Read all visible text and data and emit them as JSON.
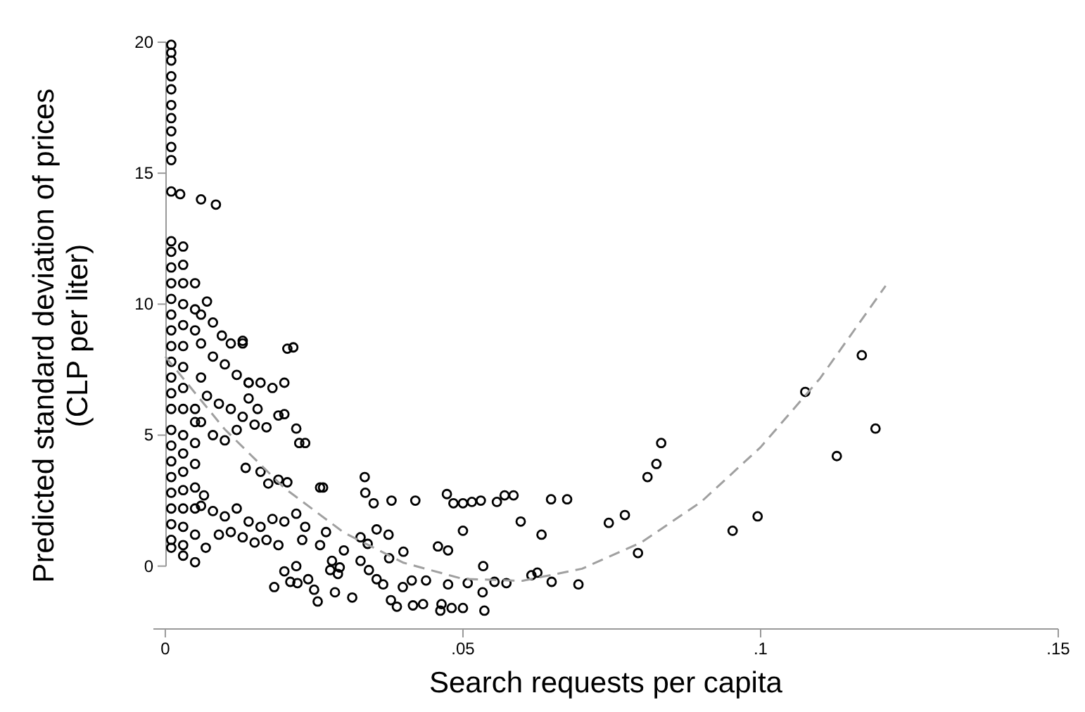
{
  "chart_data": {
    "type": "scatter",
    "xlabel": "Search requests per capita",
    "ylabel": "Predicted standard deviation of prices\n(CLP per liter)",
    "xlim": [
      -0.002,
      0.15
    ],
    "ylim": [
      -2.4,
      20
    ],
    "xticks": [
      {
        "value": 0,
        "label": "0"
      },
      {
        "value": 0.05,
        "label": ".05"
      },
      {
        "value": 0.1,
        "label": ".1"
      },
      {
        "value": 0.15,
        "label": ".15"
      }
    ],
    "yticks": [
      0,
      5,
      10,
      15,
      20
    ],
    "marker": "circle",
    "series": [
      {
        "color": "#000000",
        "x": [
          0.001,
          0.001,
          0.001,
          0.001,
          0.001,
          0.001,
          0.001,
          0.001,
          0.001,
          0.001,
          0.001,
          0.001,
          0.001,
          0.001,
          0.001,
          0.001,
          0.001,
          0.001,
          0.001,
          0.001,
          0.001,
          0.001,
          0.001,
          0.001,
          0.001,
          0.001,
          0.001,
          0.001,
          0.001,
          0.001,
          0.001,
          0.001,
          0.003,
          0.003,
          0.003,
          0.003,
          0.003,
          0.003,
          0.003,
          0.003,
          0.003,
          0.003,
          0.003,
          0.003,
          0.003,
          0.003,
          0.003,
          0.003,
          0.003,
          0.0025,
          0.006,
          0.0085,
          0.005,
          0.005,
          0.005,
          0.005,
          0.005,
          0.005,
          0.005,
          0.005,
          0.007,
          0.006,
          0.008,
          0.0095,
          0.011,
          0.013,
          0.006,
          0.008,
          0.01,
          0.012,
          0.014,
          0.016,
          0.018,
          0.006,
          0.007,
          0.009,
          0.011,
          0.013,
          0.015,
          0.006,
          0.008,
          0.01,
          0.012,
          0.014,
          0.005,
          0.0205,
          0.0215,
          0.02,
          0.014,
          0.013,
          0.022,
          0.017,
          0.0225,
          0.0235,
          0.019,
          0.02,
          0.0155,
          0.005,
          0.0135,
          0.016,
          0.0173,
          0.019,
          0.0205,
          0.022,
          0.0065,
          0.005,
          0.0068,
          0.006,
          0.008,
          0.01,
          0.012,
          0.014,
          0.016,
          0.018,
          0.02,
          0.009,
          0.011,
          0.013,
          0.015,
          0.017,
          0.019,
          0.02,
          0.022,
          0.021,
          0.024,
          0.025,
          0.023,
          0.026,
          0.028,
          0.029,
          0.027,
          0.026,
          0.0265,
          0.0335,
          0.0336,
          0.035,
          0.038,
          0.042,
          0.0473,
          0.0484,
          0.05,
          0.0515,
          0.053,
          0.0557,
          0.057,
          0.0585,
          0.0648,
          0.0675,
          0.0597,
          0.0632,
          0.05,
          0.0745,
          0.0772,
          0.081,
          0.0825,
          0.0833,
          0.0794,
          0.0235,
          0.0328,
          0.0355,
          0.0375,
          0.04,
          0.0458,
          0.0475,
          0.03,
          0.034,
          0.0376,
          0.0328,
          0.0277,
          0.0293,
          0.0342,
          0.0355,
          0.0366,
          0.0399,
          0.0414,
          0.0438,
          0.0475,
          0.0508,
          0.0534,
          0.0533,
          0.0553,
          0.0573,
          0.0615,
          0.0625,
          0.0649,
          0.0694,
          0.0256,
          0.0285,
          0.0314,
          0.0379,
          0.0389,
          0.0416,
          0.0433,
          0.0464,
          0.0462,
          0.0481,
          0.05,
          0.0536,
          0.0183,
          0.0222,
          0.117,
          0.1193,
          0.1128,
          0.1075,
          0.0953,
          0.0995
        ],
        "values": [
          19.9,
          19.6,
          19.3,
          18.7,
          18.2,
          17.6,
          17.1,
          16.6,
          16.0,
          15.5,
          14.3,
          12.4,
          12.0,
          11.4,
          10.8,
          10.2,
          9.6,
          9.0,
          8.4,
          7.8,
          7.2,
          6.6,
          6.0,
          5.2,
          4.6,
          4.0,
          3.4,
          2.8,
          2.2,
          1.6,
          1.0,
          0.7,
          12.2,
          11.5,
          10.8,
          10.0,
          9.2,
          8.4,
          7.6,
          6.8,
          6.0,
          5.0,
          4.3,
          3.6,
          2.9,
          2.2,
          1.5,
          0.8,
          0.4,
          14.2,
          14.0,
          13.8,
          10.8,
          9.8,
          9.0,
          5.5,
          4.7,
          3.0,
          2.2,
          1.2,
          10.1,
          9.6,
          9.3,
          8.8,
          8.5,
          8.5,
          8.5,
          8.0,
          7.7,
          7.3,
          7.0,
          7.0,
          6.8,
          7.2,
          6.5,
          6.2,
          6.0,
          5.7,
          5.4,
          5.5,
          5.0,
          4.8,
          5.2,
          6.4,
          6.0,
          8.3,
          8.35,
          7.0,
          7.0,
          8.6,
          5.25,
          5.3,
          4.7,
          4.7,
          5.75,
          5.8,
          6.0,
          3.9,
          3.75,
          3.6,
          3.15,
          3.3,
          3.2,
          2.0,
          2.7,
          0.15,
          0.7,
          2.3,
          2.1,
          1.9,
          2.2,
          1.7,
          1.5,
          1.8,
          1.7,
          1.2,
          1.3,
          1.1,
          0.9,
          1.0,
          0.8,
          -0.2,
          0.0,
          -0.6,
          -0.5,
          -0.9,
          1.0,
          0.8,
          0.2,
          -0.3,
          1.3,
          3.0,
          3.0,
          3.4,
          2.8,
          2.4,
          2.5,
          2.5,
          2.75,
          2.4,
          2.4,
          2.45,
          2.5,
          2.45,
          2.7,
          2.7,
          2.55,
          2.55,
          1.7,
          1.2,
          1.35,
          1.65,
          1.95,
          3.4,
          3.9,
          4.7,
          0.5,
          1.5,
          1.1,
          1.4,
          1.2,
          0.55,
          0.75,
          0.6,
          0.6,
          0.85,
          0.3,
          0.2,
          -0.15,
          -0.05,
          -0.15,
          -0.5,
          -0.7,
          -0.8,
          -0.55,
          -0.55,
          -0.7,
          -0.65,
          0.0,
          -1.0,
          -0.6,
          -0.65,
          -0.35,
          -0.25,
          -0.6,
          -0.7,
          -1.35,
          -1.0,
          -1.2,
          -1.3,
          -1.55,
          -1.5,
          -1.45,
          -1.45,
          -1.7,
          -1.6,
          -1.6,
          -1.7,
          -0.8,
          -0.65,
          8.05,
          5.25,
          4.2,
          6.65,
          1.35,
          1.9
        ]
      },
      {
        "type": "line",
        "color": "#a0a0a0",
        "line_style": "dashed",
        "marker": "none",
        "x": [
          0,
          0.01,
          0.02,
          0.03,
          0.04,
          0.05,
          0.06,
          0.07,
          0.08,
          0.09,
          0.1,
          0.11,
          0.121
        ],
        "values": [
          8.0,
          5.22,
          2.98,
          1.28,
          0.13,
          -0.49,
          -0.56,
          -0.1,
          0.91,
          2.45,
          4.54,
          7.17,
          10.7
        ]
      }
    ]
  }
}
